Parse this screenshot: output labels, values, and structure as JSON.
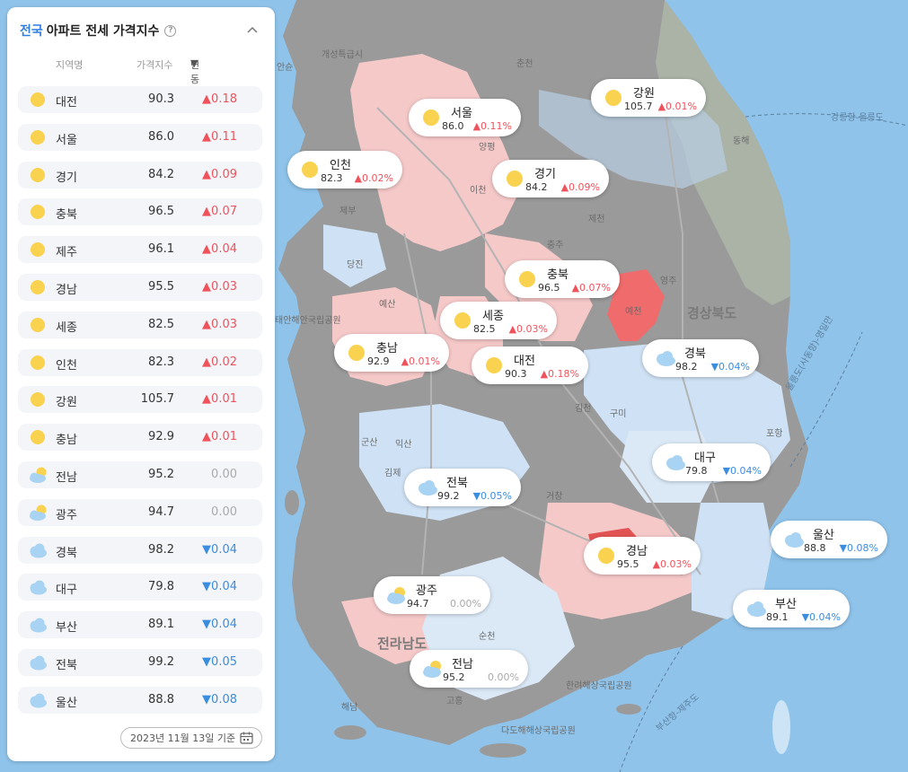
{
  "panel": {
    "title_highlight": "전국",
    "title_rest": "아파트 전세 가격지수",
    "columns": {
      "region": "지역명",
      "index": "가격지수",
      "change": "변동률(%)"
    },
    "date_label": "2023년 11월 13일 기준",
    "rows": [
      {
        "region": "대전",
        "index": "90.3",
        "change": "0.18",
        "trend": "up",
        "weather": "sun-icon"
      },
      {
        "region": "서울",
        "index": "86.0",
        "change": "0.11",
        "trend": "up",
        "weather": "sun-icon"
      },
      {
        "region": "경기",
        "index": "84.2",
        "change": "0.09",
        "trend": "up",
        "weather": "sun-icon"
      },
      {
        "region": "충북",
        "index": "96.5",
        "change": "0.07",
        "trend": "up",
        "weather": "sun-icon"
      },
      {
        "region": "제주",
        "index": "96.1",
        "change": "0.04",
        "trend": "up",
        "weather": "sun-icon"
      },
      {
        "region": "경남",
        "index": "95.5",
        "change": "0.03",
        "trend": "up",
        "weather": "sun-icon"
      },
      {
        "region": "세종",
        "index": "82.5",
        "change": "0.03",
        "trend": "up",
        "weather": "sun-icon"
      },
      {
        "region": "인천",
        "index": "82.3",
        "change": "0.02",
        "trend": "up",
        "weather": "sun-icon"
      },
      {
        "region": "강원",
        "index": "105.7",
        "change": "0.01",
        "trend": "up",
        "weather": "sun-icon"
      },
      {
        "region": "충남",
        "index": "92.9",
        "change": "0.01",
        "trend": "up",
        "weather": "sun-icon"
      },
      {
        "region": "전남",
        "index": "95.2",
        "change": "0.00",
        "trend": "flat",
        "weather": "partly-cloudy-icon"
      },
      {
        "region": "광주",
        "index": "94.7",
        "change": "0.00",
        "trend": "flat",
        "weather": "partly-cloudy-icon"
      },
      {
        "region": "경북",
        "index": "98.2",
        "change": "0.04",
        "trend": "down",
        "weather": "cloud-icon"
      },
      {
        "region": "대구",
        "index": "79.8",
        "change": "0.04",
        "trend": "down",
        "weather": "cloud-icon"
      },
      {
        "region": "부산",
        "index": "89.1",
        "change": "0.04",
        "trend": "down",
        "weather": "cloud-icon"
      },
      {
        "region": "전북",
        "index": "99.2",
        "change": "0.05",
        "trend": "down",
        "weather": "cloud-icon"
      },
      {
        "region": "울산",
        "index": "88.8",
        "change": "0.08",
        "trend": "down",
        "weather": "cloud-icon"
      }
    ]
  },
  "bubbles": [
    {
      "region": "서울",
      "index": "86.0",
      "change": "0.11%",
      "trend": "up",
      "weather": "sun-icon"
    },
    {
      "region": "강원",
      "index": "105.7",
      "change": "0.01%",
      "trend": "up",
      "weather": "sun-icon"
    },
    {
      "region": "인천",
      "index": "82.3",
      "change": "0.02%",
      "trend": "up",
      "weather": "sun-icon"
    },
    {
      "region": "경기",
      "index": "84.2",
      "change": "0.09%",
      "trend": "up",
      "weather": "sun-icon"
    },
    {
      "region": "충북",
      "index": "96.5",
      "change": "0.07%",
      "trend": "up",
      "weather": "sun-icon"
    },
    {
      "region": "세종",
      "index": "82.5",
      "change": "0.03%",
      "trend": "up",
      "weather": "sun-icon"
    },
    {
      "region": "충남",
      "index": "92.9",
      "change": "0.01%",
      "trend": "up",
      "weather": "sun-icon"
    },
    {
      "region": "대전",
      "index": "90.3",
      "change": "0.18%",
      "trend": "up",
      "weather": "sun-icon"
    },
    {
      "region": "경북",
      "index": "98.2",
      "change": "0.04%",
      "trend": "down",
      "weather": "cloud-icon"
    },
    {
      "region": "대구",
      "index": "79.8",
      "change": "0.04%",
      "trend": "down",
      "weather": "cloud-icon"
    },
    {
      "region": "전북",
      "index": "99.2",
      "change": "0.05%",
      "trend": "down",
      "weather": "cloud-icon"
    },
    {
      "region": "경남",
      "index": "95.5",
      "change": "0.03%",
      "trend": "up",
      "weather": "sun-icon"
    },
    {
      "region": "울산",
      "index": "88.8",
      "change": "0.08%",
      "trend": "down",
      "weather": "cloud-icon"
    },
    {
      "region": "광주",
      "index": "94.7",
      "change": "0.00%",
      "trend": "flat",
      "weather": "partly-cloudy-icon"
    },
    {
      "region": "부산",
      "index": "89.1",
      "change": "0.04%",
      "trend": "down",
      "weather": "cloud-icon"
    },
    {
      "region": "전남",
      "index": "95.2",
      "change": "0.00%",
      "trend": "flat",
      "weather": "partly-cloudy-icon"
    }
  ],
  "map_labels": [
    "개성특급시",
    "춘천",
    "양평",
    "이천",
    "제천",
    "충주",
    "영주",
    "예천",
    "경상북도",
    "예산",
    "당진",
    "김천",
    "구미",
    "포항",
    "군산",
    "익산",
    "김제",
    "거창",
    "순천",
    "고흥",
    "해남",
    "전라남도",
    "동해",
    "강릉항-울릉도",
    "울릉도(사동항)-영일만",
    "부산항-제주도",
    "다도해해상국립공원",
    "한려해상국립공원",
    "태안해안국립공원",
    "제부",
    "안슌"
  ],
  "colors": {
    "up": "#f0525b",
    "down": "#3b8de0",
    "flat": "#aaaaaa",
    "accent": "#2f7fe0",
    "sea": "#8fc3ea",
    "land": "#9a9a9a",
    "rise_region": "#f6c9c9",
    "fall_region": "#cfe2f5",
    "hot_region": "#f06b6b"
  }
}
